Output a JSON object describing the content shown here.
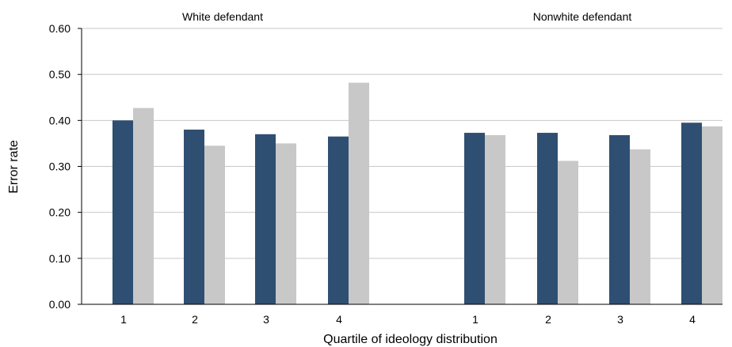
{
  "chart_data": {
    "type": "bar",
    "ylabel": "Error rate",
    "xlabel": "Quartile of ideology distribution",
    "ylim": [
      0,
      0.6
    ],
    "yticks": [
      "0.00",
      "0.10",
      "0.20",
      "0.30",
      "0.40",
      "0.50",
      "0.60"
    ],
    "grid": true,
    "series_colors": [
      "#2f4f72",
      "#c8c8c8"
    ],
    "panels": [
      {
        "title": "White defendant",
        "categories": [
          "1",
          "2",
          "3",
          "4"
        ],
        "series": [
          {
            "values": [
              0.4,
              0.38,
              0.37,
              0.365
            ]
          },
          {
            "values": [
              0.427,
              0.345,
              0.35,
              0.482
            ]
          }
        ]
      },
      {
        "title": "Nonwhite defendant",
        "categories": [
          "1",
          "2",
          "3",
          "4"
        ],
        "series": [
          {
            "values": [
              0.373,
              0.373,
              0.368,
              0.395
            ]
          },
          {
            "values": [
              0.368,
              0.312,
              0.337,
              0.387
            ]
          }
        ]
      }
    ]
  }
}
